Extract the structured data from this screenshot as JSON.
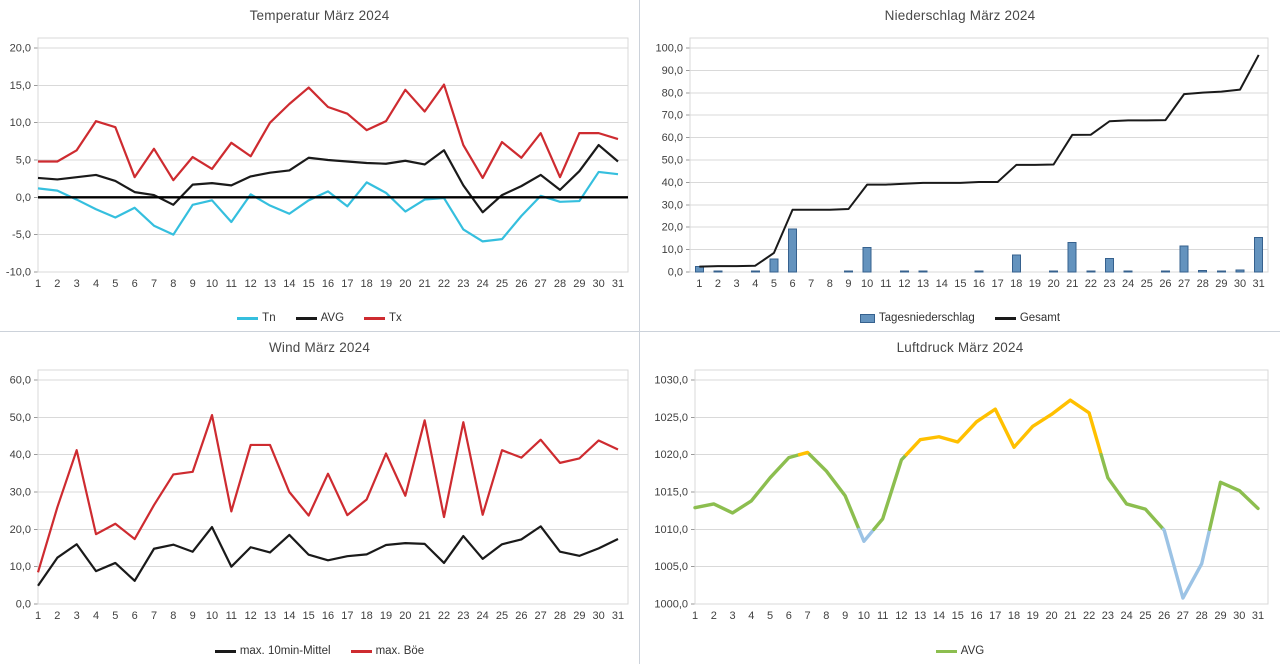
{
  "page": {
    "background": "#ffffff",
    "grid_color": "#d9d9d9",
    "axis_text_color": "#404040",
    "title_color": "#484848",
    "divider_color": "#ccd2da"
  },
  "x_labels": [
    "1",
    "2",
    "3",
    "4",
    "5",
    "6",
    "7",
    "8",
    "9",
    "10",
    "11",
    "12",
    "13",
    "14",
    "15",
    "16",
    "17",
    "18",
    "19",
    "20",
    "21",
    "22",
    "23",
    "24",
    "25",
    "26",
    "27",
    "28",
    "29",
    "30",
    "31"
  ],
  "chart_data": [
    {
      "id": "temperature",
      "type": "line",
      "title": "Temperatur März 2024",
      "ylabel": "",
      "ylim": [
        -10,
        20
      ],
      "grid": true,
      "zero_line": true,
      "y_tick_values": [
        -10,
        -5,
        0,
        5,
        10,
        15,
        20
      ],
      "y_tick_labels": [
        "-10,0",
        "-5,0",
        "0,0",
        "5,0",
        "10,0",
        "15,0",
        "20,0"
      ],
      "series": [
        {
          "name": "Tn",
          "kind": "line",
          "color": "#35BFDE",
          "values": [
            1.2,
            0.9,
            -0.3,
            -1.6,
            -2.7,
            -1.4,
            -3.8,
            -5.0,
            -1.0,
            -0.4,
            -3.3,
            0.4,
            -1.1,
            -2.2,
            -0.4,
            0.8,
            -1.2,
            2.0,
            0.6,
            -1.9,
            -0.3,
            -0.1,
            -4.3,
            -5.9,
            -5.6,
            -2.5,
            0.2,
            -0.6,
            -0.5,
            3.4,
            3.1
          ]
        },
        {
          "name": "AVG",
          "kind": "line",
          "color": "#1a1a1a",
          "values": [
            2.6,
            2.4,
            2.7,
            3.0,
            2.2,
            0.7,
            0.3,
            -1.0,
            1.7,
            1.9,
            1.6,
            2.8,
            3.3,
            3.6,
            5.3,
            5.0,
            4.8,
            4.6,
            4.5,
            4.9,
            4.4,
            6.3,
            1.6,
            -2.0,
            0.3,
            1.5,
            3.0,
            1.0,
            3.5,
            7.0,
            4.8
          ]
        },
        {
          "name": "Tx",
          "kind": "line",
          "color": "#CE2B30",
          "values": [
            4.8,
            4.8,
            6.3,
            10.2,
            9.4,
            2.7,
            6.5,
            2.3,
            5.4,
            3.8,
            7.3,
            5.5,
            10.0,
            12.5,
            14.7,
            12.1,
            11.2,
            9.0,
            10.2,
            14.4,
            11.5,
            15.1,
            7.0,
            2.6,
            7.4,
            5.3,
            8.6,
            2.7,
            8.6,
            8.6,
            7.8
          ]
        }
      ],
      "legend": [
        {
          "label": "Tn",
          "swatch": "line",
          "color": "#35BFDE"
        },
        {
          "label": "AVG",
          "swatch": "line",
          "color": "#1a1a1a"
        },
        {
          "label": "Tx",
          "swatch": "line",
          "color": "#CE2B30"
        }
      ],
      "legend_position": "bottom"
    },
    {
      "id": "precipitation",
      "type": "bar",
      "title": "Niederschlag März 2024",
      "ylabel": "",
      "ylim": [
        0,
        100
      ],
      "grid": true,
      "y_tick_values": [
        0,
        10,
        20,
        30,
        40,
        50,
        60,
        70,
        80,
        90,
        100
      ],
      "y_tick_labels": [
        "0,0",
        "10,0",
        "20,0",
        "30,0",
        "40,0",
        "50,0",
        "60,0",
        "70,0",
        "80,0",
        "90,0",
        "100,0"
      ],
      "series": [
        {
          "name": "Tagesniederschlag",
          "kind": "bar",
          "color": "#6493BE",
          "border": "#36618E",
          "values": [
            2.4,
            0.2,
            0,
            0.2,
            5.7,
            19.3,
            0,
            0,
            0.3,
            10.9,
            0,
            0.4,
            0.4,
            0,
            0,
            0.4,
            0,
            7.6,
            0,
            0.2,
            13.2,
            0.1,
            6.0,
            0.4,
            0,
            0.1,
            11.6,
            0.7,
            0.4,
            0.9,
            15.5
          ]
        },
        {
          "name": "Gesamt",
          "kind": "line",
          "color": "#1a1a1a",
          "values": [
            2.4,
            2.6,
            2.6,
            2.8,
            8.5,
            27.8,
            27.8,
            27.8,
            28.1,
            39.0,
            39.0,
            39.4,
            39.8,
            39.8,
            39.8,
            40.2,
            40.2,
            47.8,
            47.8,
            48.0,
            61.2,
            61.3,
            67.3,
            67.7,
            67.7,
            67.8,
            79.4,
            80.1,
            80.5,
            81.4,
            96.9
          ]
        }
      ],
      "legend": [
        {
          "label": "Tagesniederschlag",
          "swatch": "bar",
          "color": "#6493BE",
          "border": "#36618E"
        },
        {
          "label": "Gesamt",
          "swatch": "line",
          "color": "#1a1a1a"
        }
      ],
      "legend_position": "bottom"
    },
    {
      "id": "wind",
      "type": "line",
      "title": "Wind März 2024",
      "ylabel": "",
      "ylim": [
        0,
        60
      ],
      "grid": true,
      "y_tick_values": [
        0,
        10,
        20,
        30,
        40,
        50,
        60
      ],
      "y_tick_labels": [
        "0,0",
        "10,0",
        "20,0",
        "30,0",
        "40,0",
        "50,0",
        "60,0"
      ],
      "series": [
        {
          "name": "max. 10min-Mittel",
          "kind": "line",
          "color": "#1a1a1a",
          "values": [
            4.9,
            12.4,
            16.0,
            8.8,
            11.0,
            6.2,
            14.8,
            15.9,
            14.0,
            20.6,
            10.0,
            15.2,
            13.8,
            18.5,
            13.2,
            11.7,
            12.8,
            13.3,
            15.8,
            16.3,
            16.1,
            11.0,
            18.2,
            12.1,
            16.0,
            17.3,
            20.8,
            14.0,
            12.9,
            14.9,
            17.4
          ]
        },
        {
          "name": "max. Böe",
          "kind": "line",
          "color": "#CE2B30",
          "values": [
            8.5,
            25.9,
            41.2,
            18.7,
            21.5,
            17.4,
            26.5,
            34.7,
            35.4,
            50.6,
            24.8,
            42.6,
            42.6,
            30.0,
            23.7,
            34.9,
            23.8,
            28.0,
            40.3,
            29.0,
            49.2,
            23.3,
            48.7,
            23.9,
            41.2,
            39.2,
            44.0,
            37.8,
            39.0,
            43.8,
            41.4
          ]
        }
      ],
      "legend": [
        {
          "label": "max. 10min-Mittel",
          "swatch": "line",
          "color": "#1a1a1a"
        },
        {
          "label": "max. Böe",
          "swatch": "line",
          "color": "#CE2B30"
        }
      ],
      "legend_position": "bottom"
    },
    {
      "id": "pressure",
      "type": "line",
      "title": "Luftdruck März 2024",
      "ylabel": "",
      "ylim": [
        1000,
        1030
      ],
      "grid": true,
      "y_tick_values": [
        1000,
        1005,
        1010,
        1015,
        1020,
        1025,
        1030
      ],
      "y_tick_labels": [
        "1000,0",
        "1005,0",
        "1010,0",
        "1015,0",
        "1020,0",
        "1025,0",
        "1030,0"
      ],
      "series": [
        {
          "name": "AVG",
          "kind": "line",
          "color": "#8CBE4F",
          "width": 3.4,
          "segment_thresholds": [
            1010,
            1020
          ],
          "segment_colors": [
            "#9CC3E5",
            "#8CBE4F",
            "#FFC000"
          ],
          "values": [
            1012.9,
            1013.4,
            1012.2,
            1013.8,
            1016.9,
            1019.6,
            1020.3,
            1017.8,
            1014.5,
            1008.4,
            1011.4,
            1019.3,
            1022.0,
            1022.4,
            1021.7,
            1024.4,
            1026.1,
            1021.0,
            1023.8,
            1025.4,
            1027.3,
            1025.6,
            1016.9,
            1013.4,
            1012.7,
            1009.9,
            1000.8,
            1005.4,
            1016.3,
            1015.2,
            1012.8
          ]
        }
      ],
      "legend": [
        {
          "label": "AVG",
          "swatch": "line",
          "color": "#8CBE4F"
        }
      ],
      "legend_position": "bottom"
    }
  ]
}
